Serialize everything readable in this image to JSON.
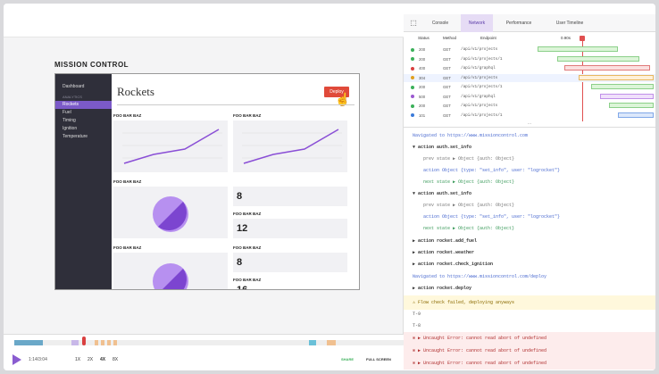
{
  "app": {
    "brand": "MISSION CONTROL",
    "sidebar": [
      "Dashboard",
      "ANALYTICS",
      "Rockets",
      "Fuel",
      "Timing",
      "Ignition",
      "Temperature"
    ],
    "page_title": "Rockets",
    "deploy_label": "Deploy",
    "card_label": "FOO BAR BAZ",
    "numbers": [
      "8",
      "12",
      "8",
      "16"
    ]
  },
  "player": {
    "time": "1:14/3:04",
    "speeds": [
      "1X",
      "2X",
      "4X",
      "8X"
    ],
    "share_label": "SHARE",
    "fullscreen_label": "FULL SCREEN"
  },
  "devtools": {
    "tabs": [
      "Console",
      "Network",
      "Performance",
      "User Timeline"
    ],
    "columns": [
      "Status",
      "Method",
      "Endpoint"
    ],
    "time_marker": "0.90s",
    "requests": [
      {
        "status": "200",
        "method": "GET",
        "endpoint": "/api/v1/projects",
        "color": "#3bb05a"
      },
      {
        "status": "200",
        "method": "GET",
        "endpoint": "/api/v1/projects/1",
        "color": "#3bb05a"
      },
      {
        "status": "400",
        "method": "GET",
        "endpoint": "/api/v1/graphql",
        "color": "#d94040"
      },
      {
        "status": "304",
        "method": "GET",
        "endpoint": "/api/v1/projects",
        "color": "#e0a020"
      },
      {
        "status": "200",
        "method": "GET",
        "endpoint": "/api/v1/projects/1",
        "color": "#3bb05a"
      },
      {
        "status": "500",
        "method": "GET",
        "endpoint": "/api/v1/graphql",
        "color": "#9b59d0"
      },
      {
        "status": "200",
        "method": "GET",
        "endpoint": "/api/v1/projects",
        "color": "#3bb05a"
      },
      {
        "status": "101",
        "method": "GET",
        "endpoint": "/api/v1/projects/1",
        "color": "#3a7ad9"
      }
    ],
    "log": {
      "nav1": "Navigated to https://www.missioncontrol.com",
      "action1": "action auth.set_info",
      "prev1": "prev state ▶ Object {auth: Object}",
      "act1": "action Object {type: \"set_info\", user: \"logrocket\"}",
      "next1": "next state ▶ Object {auth: Object}",
      "action2": "action auth.set_info",
      "prev2": "prev state ▶ Object {auth: Object}",
      "act2": "action Object {type: \"set_info\", user: \"logrocket\"}",
      "next2": "next state ▶ Object {auth: Object}",
      "action3": "action rocket.add_fuel",
      "action4": "action rocket.weather",
      "action5": "action rocket.check_ignition",
      "nav2": "Navigated to https://www.missioncontrol.com/deploy",
      "action6": "action rocket.deploy",
      "warn": "Flow check failed, deploying anyways",
      "t9": "T-9",
      "t8": "T-8",
      "error": "Uncaught Error: cannot read abort of undefined"
    }
  }
}
